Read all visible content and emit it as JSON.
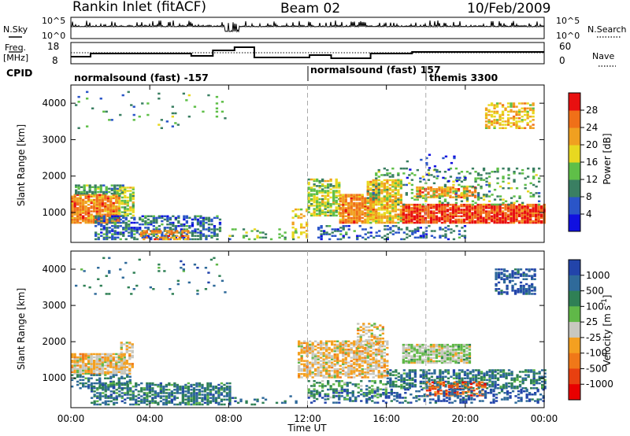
{
  "header": {
    "station": "Rankin Inlet (fitACF)",
    "beam": "Beam 02",
    "date": "10/Feb/2009"
  },
  "top_panels": {
    "nsky": {
      "left_label": "N.Sky",
      "left_ticks": [
        "10^5",
        "10^0"
      ],
      "right_label": "N.Search",
      "right_ticks": [
        "10^5",
        "10^0"
      ]
    },
    "freq": {
      "left_label_line1": "Freq.",
      "left_label_line2": "[MHz]",
      "left_ticks": [
        "18",
        "8"
      ],
      "right_label": "Nave",
      "right_ticks": [
        "60",
        "0"
      ]
    },
    "cpid": {
      "label": "CPID",
      "segments": [
        "normalsound (fast) -157",
        "normalsound (fast) 157",
        "themis 3300"
      ]
    }
  },
  "chart_data": [
    {
      "type": "heatmap",
      "panel": "power",
      "ylabel": "Slant Range [km]",
      "ylim": [
        180,
        4500
      ],
      "yticks": [
        "1000",
        "2000",
        "3000",
        "4000"
      ],
      "colorbar_label": "Power [dB]",
      "colorbar_ticks": [
        "4",
        "8",
        "12",
        "16",
        "20",
        "24",
        "28"
      ],
      "colors": [
        "#1010e0",
        "#2a55c8",
        "#3a7f62",
        "#5fbf48",
        "#e8d820",
        "#f0a020",
        "#f07018",
        "#e81010"
      ]
    },
    {
      "type": "heatmap",
      "panel": "velocity",
      "ylabel": "Slant Range [km]",
      "ylim": [
        180,
        4500
      ],
      "yticks": [
        "1000",
        "2000",
        "3000",
        "4000"
      ],
      "colorbar_label": "Velocity [m s^-1]",
      "colorbar_ticks": [
        "1000",
        "500",
        "100",
        "25",
        "-25",
        "-100",
        "-500",
        "-1000"
      ],
      "colors": [
        "#2244aa",
        "#2f6a9a",
        "#2f8055",
        "#60b848",
        "#c8c8c0",
        "#f4a020",
        "#f07818",
        "#e84010",
        "#e80000"
      ]
    }
  ],
  "xaxis": {
    "ticks": [
      "00:00",
      "04:00",
      "08:00",
      "12:00",
      "16:00",
      "20:00",
      "00:00"
    ],
    "title": "Time UT"
  },
  "colors": {
    "frame": "#000000",
    "divider": "#aaaaaa"
  }
}
